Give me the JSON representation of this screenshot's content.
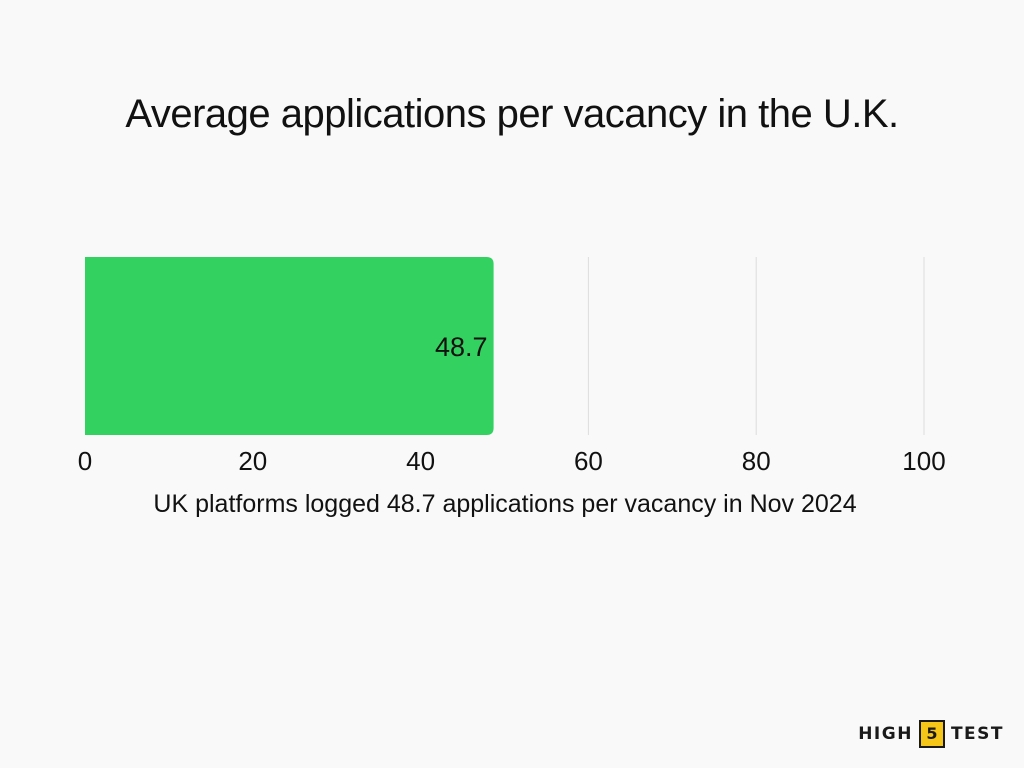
{
  "chart_data": {
    "type": "bar",
    "orientation": "horizontal",
    "title": "Average applications per vacancy in the U.K.",
    "categories": [
      ""
    ],
    "values": [
      48.7
    ],
    "data_labels": [
      "48.7"
    ],
    "xlim": [
      0,
      100
    ],
    "xticks": [
      0,
      20,
      40,
      60,
      80,
      100
    ],
    "xtick_labels": [
      "0",
      "20",
      "40",
      "60",
      "80",
      "100"
    ],
    "xlabel": "UK platforms logged 48.7 applications per vacancy in Nov 2024",
    "ylabel": "",
    "grid": true,
    "bar_color": "#33d15f",
    "grid_color": "#dddddd"
  },
  "logo": {
    "left": "HIGH",
    "number": "5",
    "right": "TEST",
    "accent_color": "#f5c518"
  }
}
